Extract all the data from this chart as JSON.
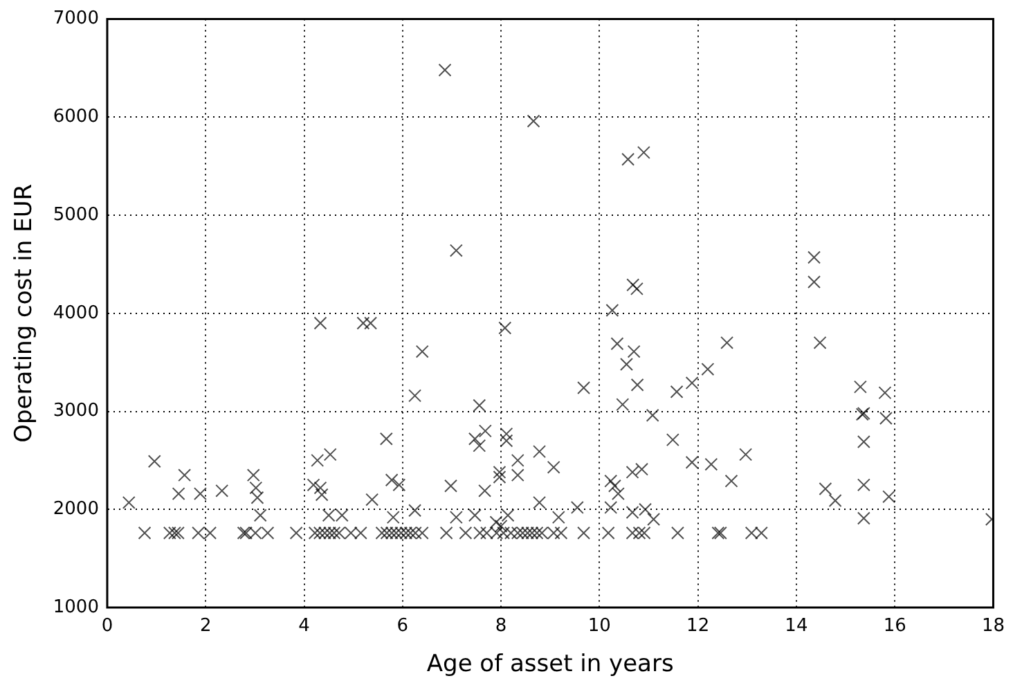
{
  "chart_data": {
    "type": "scatter",
    "xlabel": "Age of asset in years",
    "ylabel": "Operating cost in EUR",
    "xlim": [
      0,
      18
    ],
    "ylim": [
      1000,
      7000
    ],
    "xticks": [
      0,
      2,
      4,
      6,
      8,
      10,
      12,
      14,
      16,
      18
    ],
    "yticks": [
      1000,
      2000,
      3000,
      4000,
      5000,
      6000,
      7000
    ],
    "grid": true,
    "legend": false,
    "marker": "cross",
    "series": [
      {
        "color": "#000000",
        "x": [
          6.86,
          8.66,
          7.09,
          10.58,
          10.9,
          10.68,
          10.76,
          10.26,
          14.36,
          14.36,
          4.33,
          5.2,
          5.35,
          8.08,
          6.4,
          6.25,
          7.56,
          0.96,
          0.44,
          1.57,
          1.45,
          1.89,
          2.33,
          2.97,
          3.02,
          3.05,
          3.11,
          4.27,
          4.53,
          4.19,
          4.33,
          4.36,
          4.5,
          4.77,
          5.67,
          5.78,
          5.93,
          5.38,
          5.81,
          6.25,
          6.98,
          7.09,
          7.47,
          7.68,
          7.56,
          8.11,
          8.11,
          7.67,
          7.97,
          7.97,
          8.34,
          8.34,
          8.78,
          9.07,
          8.78,
          7.47,
          8.14,
          7.9,
          8.0,
          0.76,
          1.27,
          1.37,
          1.44,
          1.85,
          2.09,
          2.77,
          2.82,
          3.01,
          3.26,
          3.84,
          4.22,
          4.32,
          4.42,
          4.52,
          4.61,
          4.71,
          4.95,
          5.15,
          5.58,
          5.68,
          5.78,
          5.87,
          5.97,
          6.07,
          6.16,
          6.26,
          6.4,
          6.89,
          7.28,
          7.57,
          7.71,
          7.91,
          8.05,
          8.2,
          8.34,
          8.44,
          8.54,
          8.63,
          8.73,
          8.83,
          9.07,
          10.36,
          10.7,
          10.55,
          10.77,
          9.68,
          10.47,
          11.08,
          12.59,
          12.2,
          11.88,
          11.57,
          11.49,
          11.88,
          12.27,
          12.97,
          12.68,
          14.48,
          15.3,
          15.8,
          15.37,
          15.34,
          15.82,
          15.37,
          15.37,
          14.59,
          14.79,
          15.88,
          15.37,
          17.97,
          10.23,
          10.31,
          10.38,
          10.67,
          10.86,
          9.55,
          10.23,
          10.67,
          10.93,
          11.1,
          9.17,
          9.22,
          9.68,
          10.18,
          10.67,
          10.81,
          10.91,
          11.59,
          12.41,
          12.46,
          13.09,
          13.29
        ],
        "values": [
          6480,
          5960,
          4640,
          5570,
          5640,
          4290,
          4250,
          4030,
          4570,
          4320,
          3900,
          3900,
          3900,
          3850,
          3610,
          3160,
          3060,
          2490,
          2070,
          2350,
          2160,
          2160,
          2190,
          2350,
          2220,
          2120,
          1940,
          2500,
          2560,
          2250,
          2220,
          2150,
          1940,
          1940,
          2720,
          2300,
          2250,
          2100,
          1920,
          1990,
          2240,
          1920,
          2720,
          2800,
          2650,
          2770,
          2700,
          2190,
          2380,
          2330,
          2500,
          2350,
          2590,
          2430,
          2070,
          1940,
          1940,
          1870,
          1830,
          1760,
          1760,
          1760,
          1760,
          1760,
          1760,
          1760,
          1760,
          1760,
          1760,
          1760,
          1760,
          1760,
          1760,
          1760,
          1760,
          1760,
          1760,
          1760,
          1760,
          1760,
          1760,
          1760,
          1760,
          1760,
          1760,
          1760,
          1760,
          1760,
          1760,
          1760,
          1760,
          1760,
          1760,
          1760,
          1760,
          1760,
          1760,
          1760,
          1760,
          1760,
          1760,
          3690,
          3610,
          3480,
          3270,
          3240,
          3070,
          2960,
          3700,
          3430,
          3290,
          3200,
          2710,
          2480,
          2460,
          2560,
          2290,
          3700,
          3250,
          3190,
          2980,
          2970,
          2930,
          2690,
          2250,
          2210,
          2090,
          2130,
          1910,
          1900,
          2290,
          2240,
          2160,
          2380,
          2410,
          2020,
          2020,
          1970,
          2000,
          1900,
          1920,
          1760,
          1760,
          1760,
          1760,
          1760,
          1760,
          1760,
          1760,
          1760,
          1760,
          1760
        ]
      }
    ]
  }
}
